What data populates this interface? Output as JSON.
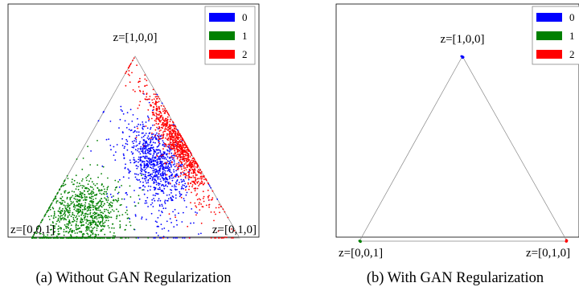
{
  "chart_data": [
    {
      "type": "scatter",
      "caption": "(a) Without GAN Regularization",
      "vertices": {
        "top": "z=[1,0,0]",
        "bottom_left": "z=[0,0,1]",
        "bottom_right": "z=[0,1,0]"
      },
      "legend": {
        "placement": "top-right",
        "entries": [
          "0",
          "1",
          "2"
        ]
      },
      "series": [
        {
          "name": "0",
          "color": "#0000ff",
          "distribution": "spread along the middle of the simplex, from near z=[1,0,0] down toward the base near z=[0,1,0]"
        },
        {
          "name": "1",
          "color": "#008000",
          "distribution": "spread over the lower-left region toward z=[0,0,1]"
        },
        {
          "name": "2",
          "color": "#ff0000",
          "distribution": "spread along the right edge between z=[1,0,0] and z=[0,1,0]"
        }
      ],
      "grid": false
    },
    {
      "type": "scatter",
      "caption": "(b) With GAN Regularization",
      "vertices": {
        "top": "z=[1,0,0]",
        "bottom_left": "z=[0,0,1]",
        "bottom_right": "z=[0,1,0]"
      },
      "legend": {
        "placement": "top-right",
        "entries": [
          "0",
          "1",
          "2"
        ]
      },
      "series": [
        {
          "name": "0",
          "color": "#0000ff",
          "points": [
            [
              1,
              0,
              0
            ]
          ],
          "distribution": "collapsed at z=[1,0,0]"
        },
        {
          "name": "1",
          "color": "#008000",
          "points": [
            [
              0,
              0,
              1
            ]
          ],
          "distribution": "collapsed at z=[0,0,1]"
        },
        {
          "name": "2",
          "color": "#ff0000",
          "points": [
            [
              0,
              1,
              0
            ]
          ],
          "distribution": "collapsed at z=[0,1,0]"
        }
      ],
      "grid": false
    }
  ]
}
